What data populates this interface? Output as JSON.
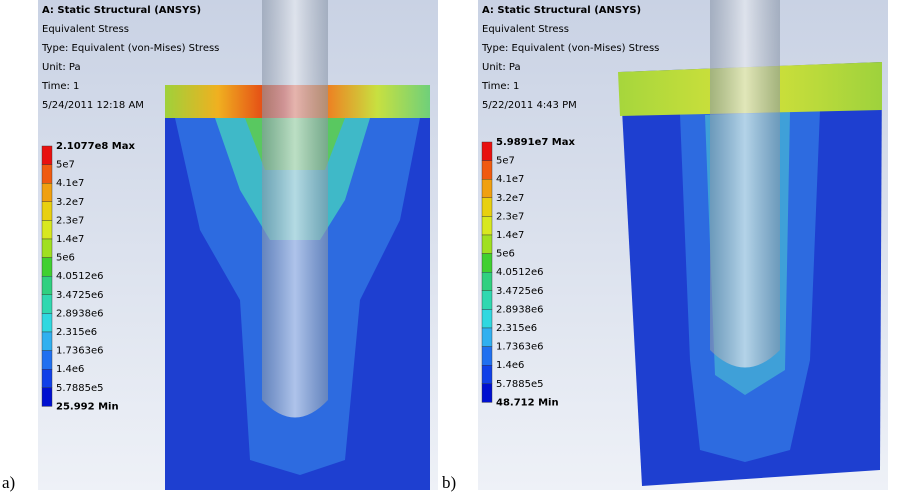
{
  "panels": [
    {
      "caption": "a)",
      "header": [
        "A: Static Structural (ANSYS)",
        "Equivalent Stress",
        "Type: Equivalent (von-Mises) Stress",
        "Unit: Pa",
        "Time: 1",
        "5/24/2011 12:18 AM"
      ],
      "legend": [
        "2.1077e8 Max",
        "5e7",
        "4.1e7",
        "3.2e7",
        "2.3e7",
        "1.4e7",
        "5e6",
        "4.0512e6",
        "3.4725e6",
        "2.8938e6",
        "2.315e6",
        "1.7363e6",
        "1.4e6",
        "5.7885e5",
        "25.992 Min"
      ]
    },
    {
      "caption": "b)",
      "header": [
        "A: Static Structural (ANSYS)",
        "Equivalent Stress",
        "Type: Equivalent (von-Mises) Stress",
        "Unit: Pa",
        "Time: 1",
        "5/22/2011 4:43 PM"
      ],
      "legend": [
        "5.9891e7 Max",
        "5e7",
        "4.1e7",
        "3.2e7",
        "2.3e7",
        "1.4e7",
        "5e6",
        "4.0512e6",
        "3.4725e6",
        "2.8938e6",
        "2.315e6",
        "1.7363e6",
        "1.4e6",
        "5.7885e5",
        "48.712 Min"
      ]
    }
  ]
}
